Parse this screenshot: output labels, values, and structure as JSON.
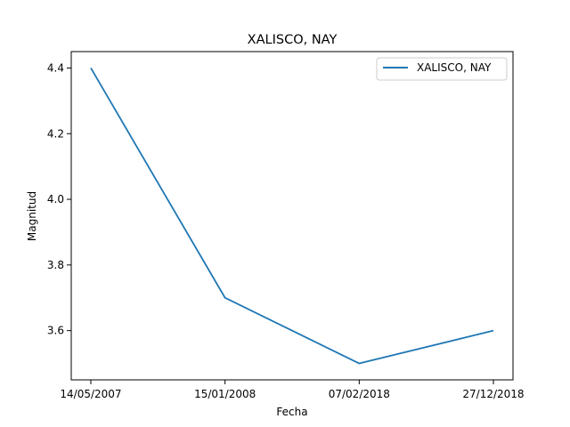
{
  "chart_data": {
    "type": "line",
    "title": "XALISCO, NAY",
    "xlabel": "Fecha",
    "ylabel": "Magnitud",
    "categories": [
      "14/05/2007",
      "15/01/2008",
      "07/02/2018",
      "27/12/2018"
    ],
    "series": [
      {
        "name": "XALISCO, NAY",
        "values": [
          4.4,
          3.7,
          3.5,
          3.6
        ],
        "color": "#1f77b4"
      }
    ],
    "ylim": [
      3.45,
      4.45
    ],
    "yticks": [
      3.6,
      3.8,
      4.0,
      4.2,
      4.4
    ],
    "ytick_labels": [
      "3.6",
      "3.8",
      "4.0",
      "4.2",
      "4.4"
    ],
    "grid": false,
    "legend": "top-right"
  }
}
